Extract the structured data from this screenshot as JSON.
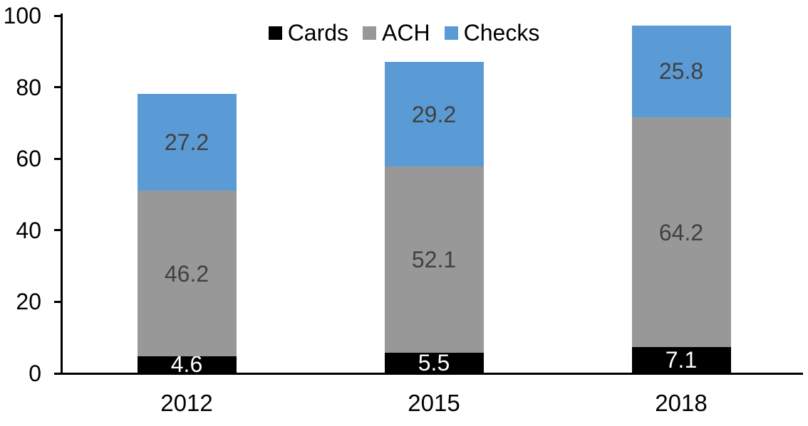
{
  "chart_data": {
    "type": "bar",
    "stacked": true,
    "title": "",
    "categories": [
      "2012",
      "2015",
      "2018"
    ],
    "series": [
      {
        "name": "Cards",
        "color": "#000000",
        "label_color": "#ffffff",
        "values": [
          4.6,
          5.5,
          7.1
        ]
      },
      {
        "name": "ACH",
        "color": "#989898",
        "label_color": "#404040",
        "values": [
          46.2,
          52.1,
          64.2
        ]
      },
      {
        "name": "Checks",
        "color": "#5B9BD5",
        "label_color": "#404040",
        "values": [
          27.2,
          29.2,
          25.8
        ]
      }
    ],
    "totals": [
      78.0,
      86.8,
      97.1
    ],
    "xlabel": "",
    "ylabel": "",
    "ylim": [
      0,
      100
    ],
    "yticks": [
      0,
      20,
      40,
      60,
      80,
      100
    ],
    "legend": {
      "position": "top",
      "entries": [
        "Cards",
        "ACH",
        "Checks"
      ]
    },
    "grid": false,
    "axis_color": "#000000",
    "tick_label_color": "#000000",
    "value_label_format": "one_decimal"
  }
}
